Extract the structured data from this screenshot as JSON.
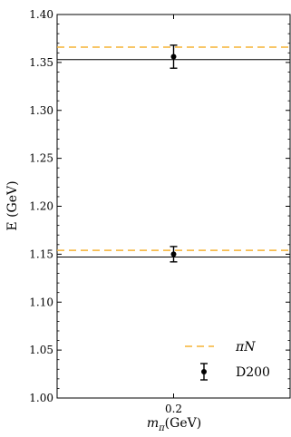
{
  "chart_data": {
    "type": "scatter",
    "xlabel": "mπ(GeV)",
    "xlabel_base": "m",
    "xlabel_sub": "π",
    "xlabel_unit": "(GeV)",
    "ylabel": "E (GeV)",
    "xlim": [
      0.15,
      0.25
    ],
    "ylim": [
      1.0,
      1.4
    ],
    "x_ticks": [
      0.2
    ],
    "x_tick_labels": [
      "0.2"
    ],
    "y_ticks": [
      1.0,
      1.05,
      1.1,
      1.15,
      1.2,
      1.25,
      1.3,
      1.35,
      1.4
    ],
    "y_tick_labels": [
      "1.00",
      "1.05",
      "1.10",
      "1.15",
      "1.20",
      "1.25",
      "1.30",
      "1.35",
      "1.40"
    ],
    "grid": false,
    "legend_position": "bottom-right",
    "series": [
      {
        "name": "πN",
        "legend_base": "π",
        "legend_italic": "N",
        "style": "dashed-line",
        "color": "#f5b335",
        "values": [
          1.366,
          1.154
        ]
      },
      {
        "name": "D200",
        "style": "errorbar",
        "color": "#000000",
        "points": [
          {
            "x": 0.2,
            "y": 1.356,
            "err": 0.012
          },
          {
            "x": 0.2,
            "y": 1.15,
            "err": 0.008
          }
        ]
      }
    ],
    "reference_lines": {
      "color": "#000000",
      "values": [
        1.353,
        1.147
      ]
    }
  }
}
